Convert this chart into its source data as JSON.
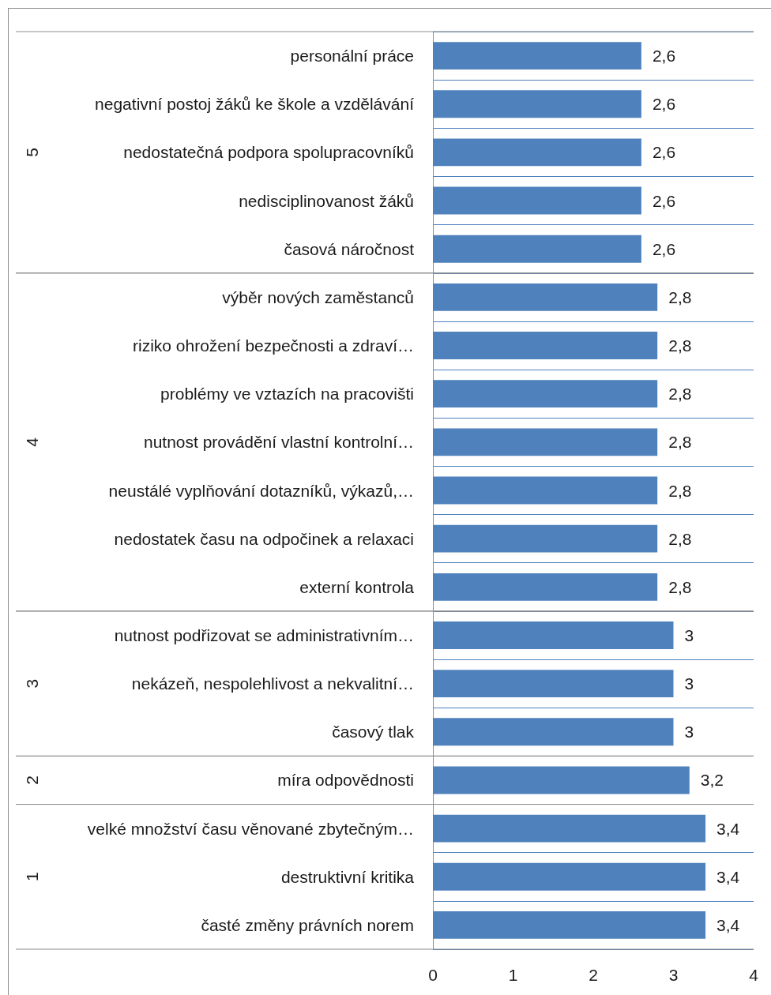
{
  "chart_data": {
    "type": "bar",
    "orientation": "horizontal",
    "categories": [
      "personální práce",
      "negativní postoj žáků ke škole a vzdělávání",
      "nedostatečná podpora spolupracovníků",
      "nedisciplinovanost žáků",
      "časová náročnost",
      "výběr nových zaměstanců",
      "riziko ohrožení bezpečnosti a zdraví…",
      "problémy ve vztazích na pracovišti",
      "nutnost provádění vlastní kontrolní…",
      "neustálé vyplňování dotazníků, výkazů,…",
      "nedostatek času na odpočinek a relaxaci",
      "externí kontrola",
      "nutnost podřizovat se administrativním…",
      "nekázeň, nespolehlivost a nekvalitní…",
      "časový tlak",
      "míra odpovědnosti",
      "velké množství času věnované zbytečným…",
      "destruktivní kritika",
      "časté změny právních norem"
    ],
    "values": [
      2.6,
      2.6,
      2.6,
      2.6,
      2.6,
      2.8,
      2.8,
      2.8,
      2.8,
      2.8,
      2.8,
      2.8,
      3,
      3,
      3,
      3.2,
      3.4,
      3.4,
      3.4
    ],
    "color": "#4f81bd",
    "xlim": [
      0,
      4
    ],
    "xticks": [
      0,
      1,
      2,
      3,
      4
    ],
    "value_labels": [
      "2,6",
      "2,6",
      "2,6",
      "2,6",
      "2,6",
      "2,8",
      "2,8",
      "2,8",
      "2,8",
      "2,8",
      "2,8",
      "2,8",
      "3",
      "3",
      "3",
      "3,2",
      "3,4",
      "3,4",
      "3,4"
    ],
    "grid": "y",
    "annotations": [
      "5",
      "4",
      "3",
      "2",
      "1"
    ]
  }
}
